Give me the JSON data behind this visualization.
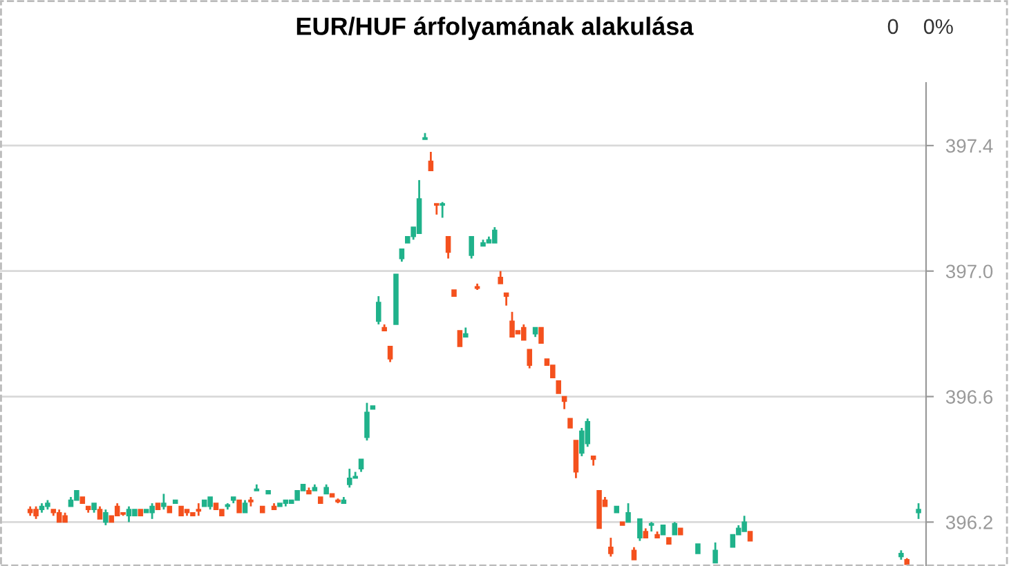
{
  "chart_data": {
    "type": "candlestick",
    "title": "EUR/HUF árfolyamának alakulása",
    "annotations": [
      "0",
      "0%"
    ],
    "categories": [
      null,
      null,
      null,
      null,
      null,
      null,
      null,
      null,
      null,
      null,
      null,
      null,
      null,
      null,
      null,
      null,
      null,
      null,
      null,
      null,
      null,
      null,
      null,
      null,
      null,
      null,
      null,
      null,
      null,
      null,
      null,
      null,
      null,
      null,
      null,
      null,
      null,
      null,
      null,
      null,
      null,
      null,
      null,
      null,
      null,
      null,
      null,
      null,
      null,
      null,
      null,
      null,
      null,
      null,
      null,
      null,
      null,
      null,
      null,
      null,
      null,
      null,
      null,
      null,
      null,
      null,
      null,
      null,
      null,
      null,
      null,
      null,
      null,
      null,
      null,
      null,
      null,
      null,
      null,
      null,
      null,
      null,
      null,
      null,
      null,
      null,
      null,
      null,
      null,
      null,
      null,
      null,
      null,
      null,
      null,
      null,
      null,
      null,
      null,
      null,
      null,
      null,
      null,
      null,
      null,
      null,
      null,
      null,
      null,
      null,
      null,
      null,
      null,
      null,
      null,
      null,
      null,
      null,
      null,
      null,
      null,
      null,
      null,
      null,
      null,
      null,
      null,
      null,
      null,
      null,
      null,
      null,
      null,
      null,
      null,
      null,
      null,
      null,
      null,
      null,
      null,
      null,
      null,
      null,
      null,
      null,
      null,
      null,
      null,
      null,
      null,
      null,
      null,
      null
    ],
    "ohlc": [
      [
        396.24,
        396.25,
        396.22,
        396.23
      ],
      [
        396.24,
        396.25,
        396.21,
        396.22
      ],
      [
        396.24,
        396.26,
        396.23,
        396.25
      ],
      [
        396.25,
        396.27,
        396.24,
        396.26
      ],
      [
        396.24,
        396.24,
        396.22,
        396.23
      ],
      [
        396.23,
        396.24,
        396.2,
        396.2
      ],
      [
        396.22,
        396.23,
        396.2,
        396.2
      ],
      [
        396.25,
        396.28,
        396.25,
        396.27
      ],
      [
        396.27,
        396.3,
        396.27,
        396.3
      ],
      [
        396.28,
        396.28,
        396.26,
        396.26
      ],
      [
        396.25,
        396.25,
        396.23,
        396.24
      ],
      [
        396.24,
        396.26,
        396.23,
        396.26
      ],
      [
        396.24,
        396.25,
        396.21,
        396.21
      ],
      [
        396.2,
        396.24,
        396.19,
        396.23
      ],
      [
        396.22,
        396.22,
        396.2,
        396.2
      ],
      [
        396.25,
        396.26,
        396.22,
        396.22
      ],
      [
        396.23,
        396.23,
        396.22,
        396.225
      ],
      [
        396.22,
        396.25,
        396.2,
        396.24
      ],
      [
        396.22,
        396.24,
        396.22,
        396.24
      ],
      [
        396.24,
        396.24,
        396.22,
        396.22
      ],
      [
        396.23,
        396.24,
        396.23,
        396.24
      ],
      [
        396.23,
        396.26,
        396.21,
        396.25
      ],
      [
        396.26,
        396.26,
        396.24,
        396.24
      ],
      [
        396.25,
        396.29,
        396.24,
        396.26
      ],
      [
        396.25,
        396.25,
        396.23,
        396.23
      ],
      [
        396.26,
        396.27,
        396.26,
        396.27
      ],
      [
        396.25,
        396.25,
        396.22,
        396.22
      ],
      [
        396.24,
        396.24,
        396.22,
        396.23
      ],
      [
        396.23,
        396.23,
        396.22,
        396.22
      ],
      [
        396.24,
        396.26,
        396.22,
        396.235
      ],
      [
        396.25,
        396.27,
        396.25,
        396.27
      ],
      [
        396.25,
        396.28,
        396.24,
        396.28
      ],
      [
        396.26,
        396.26,
        396.24,
        396.24
      ],
      [
        396.24,
        396.24,
        396.22,
        396.22
      ],
      [
        396.25,
        396.26,
        396.24,
        396.255
      ],
      [
        396.27,
        396.28,
        396.26,
        396.28
      ],
      [
        396.27,
        396.27,
        396.23,
        396.23
      ],
      [
        396.23,
        396.27,
        396.23,
        396.26
      ],
      [
        396.27,
        396.28,
        396.25,
        396.265
      ],
      [
        396.3,
        396.32,
        396.3,
        396.305
      ],
      [
        396.25,
        396.25,
        396.23,
        396.23
      ],
      [
        396.29,
        396.3,
        396.29,
        396.3
      ],
      [
        396.25,
        396.26,
        396.24,
        396.24
      ],
      [
        396.25,
        396.26,
        396.25,
        396.26
      ],
      [
        396.26,
        396.27,
        396.25,
        396.27
      ],
      [
        396.26,
        396.27,
        396.26,
        396.27
      ],
      [
        396.27,
        396.3,
        396.27,
        396.3
      ],
      [
        396.3,
        396.32,
        396.3,
        396.32
      ],
      [
        396.3,
        396.31,
        396.29,
        396.29
      ],
      [
        396.3,
        396.32,
        396.3,
        396.31
      ],
      [
        396.28,
        396.28,
        396.26,
        396.26
      ],
      [
        396.29,
        396.32,
        396.29,
        396.31
      ],
      [
        396.29,
        396.29,
        396.28,
        396.28
      ],
      [
        396.27,
        396.275,
        396.26,
        396.265
      ],
      [
        396.26,
        396.28,
        396.26,
        396.27
      ],
      [
        396.32,
        396.37,
        396.31,
        396.34
      ],
      [
        396.34,
        396.36,
        396.34,
        396.345
      ],
      [
        396.37,
        396.4,
        396.36,
        396.4
      ],
      [
        396.47,
        396.58,
        396.46,
        396.55
      ],
      [
        396.56,
        396.57,
        396.56,
        396.57
      ],
      [
        396.84,
        396.92,
        396.83,
        396.9
      ],
      [
        396.82,
        396.83,
        396.81,
        396.81
      ],
      [
        396.76,
        396.76,
        396.71,
        396.72
      ],
      [
        396.83,
        396.99,
        396.83,
        396.99
      ],
      [
        397.04,
        397.07,
        397.03,
        397.07
      ],
      [
        397.09,
        397.11,
        397.09,
        397.11
      ],
      [
        397.11,
        397.14,
        397.1,
        397.14
      ],
      [
        397.12,
        397.29,
        397.12,
        397.23
      ],
      [
        397.42,
        397.44,
        397.42,
        397.425
      ],
      [
        397.35,
        397.38,
        397.32,
        397.32
      ],
      [
        397.215,
        397.215,
        397.18,
        397.21
      ],
      [
        397.21,
        397.22,
        397.17,
        397.215
      ],
      [
        397.11,
        397.11,
        397.04,
        397.06
      ],
      [
        396.94,
        396.94,
        396.92,
        396.92
      ],
      [
        396.81,
        396.81,
        396.76,
        396.76
      ],
      [
        396.79,
        396.82,
        396.79,
        396.8
      ],
      [
        397.05,
        397.11,
        397.04,
        397.11
      ],
      [
        396.95,
        396.96,
        396.94,
        396.945
      ],
      [
        397.08,
        397.1,
        397.08,
        397.09
      ],
      [
        397.09,
        397.11,
        397.09,
        397.1
      ],
      [
        397.09,
        397.14,
        397.09,
        397.13
      ],
      [
        396.98,
        397.0,
        396.96,
        396.96
      ],
      [
        396.93,
        396.93,
        396.89,
        396.92
      ],
      [
        396.84,
        396.87,
        396.79,
        396.79
      ],
      [
        396.81,
        396.81,
        396.8,
        396.8
      ],
      [
        396.82,
        396.83,
        396.78,
        396.78
      ],
      [
        396.75,
        396.75,
        396.69,
        396.7
      ],
      [
        396.8,
        396.82,
        396.79,
        396.82
      ],
      [
        396.82,
        396.82,
        396.77,
        396.77
      ],
      [
        396.72,
        396.72,
        396.7,
        396.7
      ],
      [
        396.7,
        396.7,
        396.66,
        396.66
      ],
      [
        396.65,
        396.65,
        396.61,
        396.61
      ],
      [
        396.6,
        396.6,
        396.56,
        396.585
      ],
      [
        396.53,
        396.53,
        396.5,
        396.5
      ],
      [
        396.46,
        396.46,
        396.34,
        396.36
      ],
      [
        396.42,
        396.5,
        396.41,
        396.49
      ],
      [
        396.45,
        396.53,
        396.44,
        396.52
      ],
      [
        396.41,
        396.41,
        396.38,
        396.4
      ],
      [
        396.3,
        396.3,
        396.18,
        396.18
      ],
      [
        396.27,
        396.28,
        396.25,
        396.25
      ],
      [
        396.12,
        396.15,
        396.09,
        396.1
      ],
      [
        396.23,
        396.25,
        396.23,
        396.25
      ],
      [
        396.2,
        396.2,
        396.19,
        396.19
      ],
      [
        396.2,
        396.26,
        396.2,
        396.23
      ],
      [
        396.11,
        396.12,
        396.08,
        396.08
      ],
      [
        396.15,
        396.21,
        396.14,
        396.21
      ],
      [
        396.17,
        396.18,
        396.15,
        396.15
      ],
      [
        396.19,
        396.2,
        396.17,
        396.195
      ],
      [
        396.16,
        396.17,
        396.15,
        396.15
      ],
      [
        396.16,
        396.19,
        396.16,
        396.19
      ],
      [
        396.15,
        396.15,
        396.13,
        396.13
      ],
      [
        396.16,
        396.2,
        396.16,
        396.195
      ],
      [
        396.18,
        396.18,
        396.16,
        396.16
      ],
      null,
      null,
      [
        396.1,
        396.13,
        396.1,
        396.13
      ],
      null,
      null,
      [
        396.07,
        396.135,
        396.07,
        396.11
      ],
      null,
      null,
      [
        396.12,
        396.16,
        396.12,
        396.16
      ],
      [
        396.16,
        396.19,
        396.16,
        396.18
      ],
      [
        396.17,
        396.22,
        396.17,
        396.2
      ],
      [
        396.17,
        396.17,
        396.14,
        396.14
      ],
      null,
      null,
      null,
      null,
      null,
      null,
      null,
      null,
      null,
      null,
      null,
      null,
      null,
      null,
      null,
      null,
      null,
      null,
      null,
      null,
      null,
      null,
      null,
      null,
      null,
      [
        396.09,
        396.11,
        396.08,
        396.1
      ],
      [
        396.08,
        396.085,
        396.065,
        396.065
      ],
      null,
      [
        396.23,
        396.26,
        396.21,
        396.24
      ]
    ],
    "colors": [
      "#f4511e",
      "#f4511e",
      "#20b28b",
      "#20b28b",
      "#f4511e",
      "#f4511e",
      "#f4511e",
      "#20b28b",
      "#20b28b",
      "#f4511e",
      "#f4511e",
      "#20b28b",
      "#f4511e",
      "#20b28b",
      "#f4511e",
      "#f4511e",
      "#f4511e",
      "#20b28b",
      "#20b28b",
      "#f4511e",
      "#20b28b",
      "#20b28b",
      "#f4511e",
      "#20b28b",
      "#f4511e",
      "#20b28b",
      "#f4511e",
      "#f4511e",
      "#f4511e",
      "#f4511e",
      "#20b28b",
      "#20b28b",
      "#f4511e",
      "#f4511e",
      "#20b28b",
      "#20b28b",
      "#f4511e",
      "#20b28b",
      "#f4511e",
      "#20b28b",
      "#f4511e",
      "#20b28b",
      "#f4511e",
      "#20b28b",
      "#20b28b",
      "#20b28b",
      "#20b28b",
      "#20b28b",
      "#f4511e",
      "#20b28b",
      "#f4511e",
      "#20b28b",
      "#f4511e",
      "#f4511e",
      "#20b28b",
      "#20b28b",
      "#20b28b",
      "#20b28b",
      "#20b28b",
      "#20b28b",
      "#20b28b",
      "#f4511e",
      "#f4511e",
      "#20b28b",
      "#20b28b",
      "#20b28b",
      "#20b28b",
      "#20b28b",
      "#20b28b",
      "#f4511e",
      "#f4511e",
      "#20b28b",
      "#f4511e",
      "#f4511e",
      "#f4511e",
      "#20b28b",
      "#20b28b",
      "#f4511e",
      "#20b28b",
      "#20b28b",
      "#20b28b",
      "#f4511e",
      "#f4511e",
      "#f4511e",
      "#f4511e",
      "#f4511e",
      "#f4511e",
      "#20b28b",
      "#f4511e",
      "#f4511e",
      "#f4511e",
      "#f4511e",
      "#f4511e",
      "#f4511e",
      "#f4511e",
      "#20b28b",
      "#20b28b",
      "#f4511e",
      "#f4511e",
      "#f4511e",
      "#f4511e",
      "#20b28b",
      "#f4511e",
      "#20b28b",
      "#f4511e",
      "#20b28b",
      "#f4511e",
      "#20b28b",
      "#f4511e",
      "#20b28b",
      "#f4511e",
      "#20b28b",
      "#f4511e",
      null,
      null,
      "#20b28b",
      null,
      null,
      "#20b28b",
      null,
      null,
      "#20b28b",
      "#20b28b",
      "#20b28b",
      "#f4511e",
      null,
      null,
      null,
      null,
      null,
      null,
      null,
      null,
      null,
      null,
      null,
      null,
      null,
      null,
      null,
      null,
      null,
      null,
      null,
      null,
      null,
      null,
      null,
      null,
      null,
      "#20b28b",
      "#f4511e",
      null,
      "#20b28b"
    ],
    "ylim": [
      396.06,
      397.6
    ],
    "yticks": [
      396.2,
      396.6,
      {
        "value": 397,
        "label": "397.0"
      },
      397.4
    ],
    "grid": "y",
    "tick_labels": "y",
    "legend": false
  }
}
